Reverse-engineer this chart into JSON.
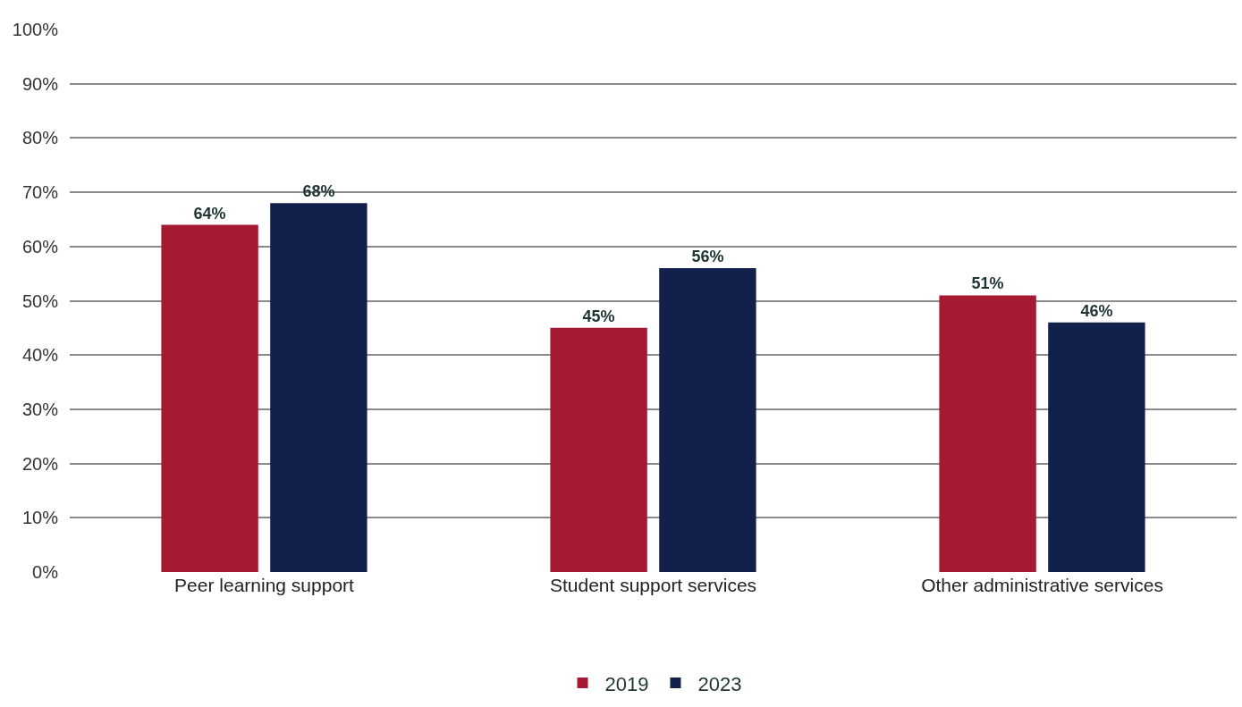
{
  "chart_data": {
    "type": "bar",
    "categories": [
      "Peer learning support",
      "Student support services",
      "Other administrative services"
    ],
    "series": [
      {
        "name": "2019",
        "color": "#a51a32",
        "values": [
          64,
          45,
          51
        ],
        "value_labels": [
          "64%",
          "45%",
          "51%"
        ]
      },
      {
        "name": "2023",
        "color": "#12214b",
        "values": [
          68,
          56,
          46
        ],
        "value_labels": [
          "68%",
          "56%",
          "46%"
        ]
      }
    ],
    "ylim": [
      0,
      100
    ],
    "yticks": [
      {
        "value": 0,
        "label": "0%"
      },
      {
        "value": 10,
        "label": "10%"
      },
      {
        "value": 20,
        "label": "20%"
      },
      {
        "value": 30,
        "label": "30%"
      },
      {
        "value": 40,
        "label": "40%"
      },
      {
        "value": 50,
        "label": "50%"
      },
      {
        "value": 60,
        "label": "60%"
      },
      {
        "value": 70,
        "label": "70%"
      },
      {
        "value": 80,
        "label": "80%"
      },
      {
        "value": 90,
        "label": "90%"
      },
      {
        "value": 100,
        "label": "100%"
      }
    ],
    "grid": "y",
    "legend": "bottom"
  }
}
